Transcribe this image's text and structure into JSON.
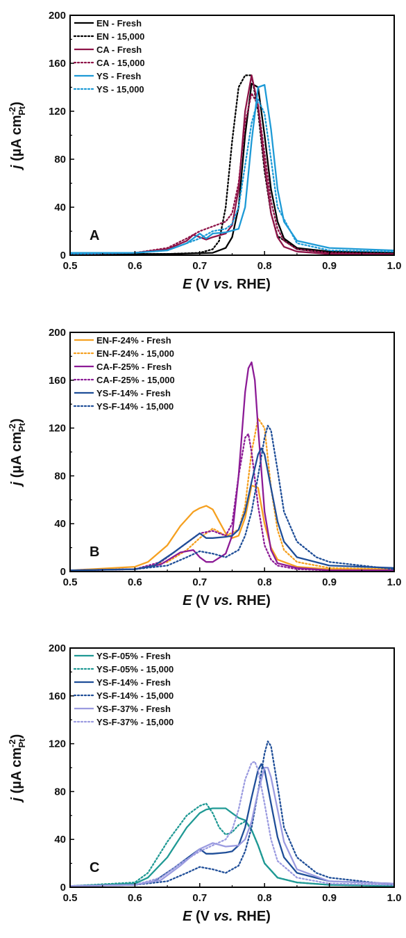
{
  "chart_data": [
    {
      "type": "line",
      "panel_label": "A",
      "xlabel": {
        "italic": "E",
        "rest": " (V ",
        "italic2": "vs.",
        "rest2": " RHE)"
      },
      "ylabel": {
        "italic": "j",
        "rest": " (µA cm",
        "sup": "-2",
        "sub": "Pt",
        "close": ")"
      },
      "xlim": [
        0.5,
        1.0
      ],
      "ylim": [
        0,
        200
      ],
      "xticks": [
        "0.5",
        "0.6",
        "0.7",
        "0.8",
        "0.9",
        "1.0"
      ],
      "yticks": [
        "0",
        "40",
        "80",
        "120",
        "160",
        "200"
      ],
      "legend_position": "top-left",
      "series": [
        {
          "name": "EN - Fresh",
          "color": "#000000",
          "dash": "solid",
          "x": [
            0.5,
            0.65,
            0.72,
            0.74,
            0.75,
            0.76,
            0.77,
            0.78,
            0.79,
            0.8,
            0.81,
            0.82,
            0.83,
            0.85,
            0.9,
            1.0
          ],
          "y": [
            1,
            1,
            2,
            6,
            15,
            40,
            100,
            143,
            140,
            100,
            55,
            28,
            14,
            6,
            3,
            2
          ]
        },
        {
          "name": "EN - 15,000",
          "color": "#000000",
          "dash": "dotted",
          "x": [
            0.5,
            0.65,
            0.7,
            0.72,
            0.73,
            0.74,
            0.75,
            0.76,
            0.77,
            0.78,
            0.79,
            0.8,
            0.81,
            0.82,
            0.85,
            0.9,
            1.0
          ],
          "y": [
            1,
            1,
            2,
            5,
            12,
            40,
            95,
            140,
            150,
            150,
            120,
            70,
            35,
            16,
            5,
            2,
            1
          ]
        },
        {
          "name": "CA - Fresh",
          "color": "#8e1448",
          "dash": "solid",
          "x": [
            0.5,
            0.6,
            0.65,
            0.68,
            0.69,
            0.7,
            0.71,
            0.72,
            0.74,
            0.75,
            0.76,
            0.77,
            0.78,
            0.79,
            0.8,
            0.81,
            0.82,
            0.83,
            0.85,
            0.9,
            1.0
          ],
          "y": [
            1,
            2,
            5,
            12,
            17,
            15,
            13,
            15,
            18,
            25,
            55,
            120,
            150,
            125,
            75,
            35,
            15,
            7,
            3,
            1,
            1
          ]
        },
        {
          "name": "CA - 15,000",
          "color": "#8e1448",
          "dash": "dotted",
          "x": [
            0.5,
            0.6,
            0.65,
            0.68,
            0.7,
            0.72,
            0.74,
            0.75,
            0.76,
            0.77,
            0.78,
            0.79,
            0.8,
            0.81,
            0.82,
            0.83,
            0.85,
            0.9,
            1.0
          ],
          "y": [
            1,
            2,
            6,
            14,
            20,
            24,
            28,
            35,
            60,
            110,
            135,
            125,
            85,
            45,
            22,
            12,
            5,
            2,
            1
          ]
        },
        {
          "name": "YS - Fresh",
          "color": "#1d9ad6",
          "dash": "solid",
          "x": [
            0.5,
            0.6,
            0.65,
            0.68,
            0.7,
            0.71,
            0.72,
            0.74,
            0.76,
            0.77,
            0.78,
            0.79,
            0.8,
            0.81,
            0.82,
            0.83,
            0.85,
            0.9,
            1.0
          ],
          "y": [
            2,
            2,
            4,
            10,
            18,
            14,
            18,
            19,
            22,
            40,
            95,
            140,
            142,
            105,
            55,
            28,
            12,
            6,
            4
          ]
        },
        {
          "name": "YS - 15,000",
          "color": "#1d9ad6",
          "dash": "dotted",
          "x": [
            0.5,
            0.6,
            0.65,
            0.68,
            0.7,
            0.72,
            0.74,
            0.75,
            0.76,
            0.77,
            0.78,
            0.79,
            0.8,
            0.81,
            0.82,
            0.85,
            0.9,
            1.0
          ],
          "y": [
            1,
            2,
            4,
            10,
            14,
            20,
            22,
            26,
            40,
            75,
            110,
            130,
            118,
            80,
            40,
            10,
            4,
            3
          ]
        }
      ]
    },
    {
      "type": "line",
      "panel_label": "B",
      "xlabel": {
        "italic": "E",
        "rest": " (V ",
        "italic2": "vs.",
        "rest2": " RHE)"
      },
      "ylabel": {
        "italic": "j",
        "rest": " (µA cm",
        "sup": "-2",
        "sub": "Pt",
        "close": ")"
      },
      "xlim": [
        0.5,
        1.0
      ],
      "ylim": [
        0,
        200
      ],
      "xticks": [
        "0.5",
        "0.6",
        "0.7",
        "0.8",
        "0.9",
        "1.0"
      ],
      "yticks": [
        "0",
        "40",
        "80",
        "120",
        "160",
        "200"
      ],
      "legend_position": "top-left",
      "series": [
        {
          "name": "EN-F-24% - Fresh",
          "color": "#f5a020",
          "dash": "solid",
          "x": [
            0.5,
            0.6,
            0.62,
            0.65,
            0.67,
            0.69,
            0.7,
            0.71,
            0.72,
            0.73,
            0.74,
            0.75,
            0.76,
            0.77,
            0.78,
            0.79,
            0.8,
            0.81,
            0.82,
            0.85,
            0.9,
            1.0
          ],
          "y": [
            1,
            4,
            8,
            22,
            38,
            50,
            53,
            55,
            52,
            42,
            32,
            28,
            30,
            45,
            72,
            70,
            40,
            20,
            10,
            4,
            2,
            2
          ]
        },
        {
          "name": "EN-F-24% - 15,000",
          "color": "#f5a020",
          "dash": "dotted",
          "x": [
            0.5,
            0.6,
            0.65,
            0.68,
            0.7,
            0.72,
            0.74,
            0.76,
            0.77,
            0.78,
            0.79,
            0.8,
            0.81,
            0.82,
            0.83,
            0.85,
            0.9,
            1.0
          ],
          "y": [
            1,
            2,
            8,
            18,
            28,
            36,
            30,
            35,
            55,
            100,
            128,
            120,
            70,
            35,
            18,
            8,
            3,
            2
          ]
        },
        {
          "name": "CA-F-25% - Fresh",
          "color": "#8c1b96",
          "dash": "solid",
          "x": [
            0.5,
            0.6,
            0.64,
            0.67,
            0.69,
            0.7,
            0.71,
            0.72,
            0.74,
            0.75,
            0.76,
            0.77,
            0.775,
            0.78,
            0.785,
            0.79,
            0.8,
            0.81,
            0.82,
            0.85,
            0.9,
            1.0
          ],
          "y": [
            1,
            2,
            6,
            16,
            18,
            12,
            8,
            8,
            15,
            30,
            80,
            150,
            170,
            175,
            160,
            120,
            50,
            18,
            7,
            3,
            1,
            1
          ]
        },
        {
          "name": "CA-F-25% - 15,000",
          "color": "#8c1b96",
          "dash": "dotted",
          "x": [
            0.5,
            0.6,
            0.64,
            0.67,
            0.69,
            0.7,
            0.72,
            0.74,
            0.75,
            0.76,
            0.77,
            0.775,
            0.78,
            0.79,
            0.8,
            0.81,
            0.82,
            0.85,
            0.9,
            1.0
          ],
          "y": [
            1,
            2,
            8,
            20,
            28,
            32,
            34,
            30,
            40,
            80,
            112,
            115,
            100,
            55,
            22,
            10,
            5,
            2,
            1,
            1
          ]
        },
        {
          "name": "YS-F-14% - Fresh",
          "color": "#1f4e98",
          "dash": "solid",
          "x": [
            0.5,
            0.6,
            0.63,
            0.66,
            0.68,
            0.69,
            0.7,
            0.71,
            0.72,
            0.74,
            0.75,
            0.76,
            0.77,
            0.78,
            0.79,
            0.795,
            0.8,
            0.81,
            0.82,
            0.83,
            0.85,
            0.9,
            1.0
          ],
          "y": [
            1,
            2,
            5,
            16,
            24,
            28,
            32,
            28,
            28,
            29,
            30,
            35,
            50,
            75,
            98,
            103,
            98,
            70,
            42,
            25,
            12,
            5,
            3
          ]
        },
        {
          "name": "YS-F-14% - 15,000",
          "color": "#1f4e98",
          "dash": "dotted",
          "x": [
            0.5,
            0.6,
            0.65,
            0.68,
            0.7,
            0.72,
            0.74,
            0.76,
            0.77,
            0.78,
            0.79,
            0.8,
            0.805,
            0.81,
            0.82,
            0.83,
            0.85,
            0.88,
            0.9,
            1.0
          ],
          "y": [
            1,
            2,
            5,
            12,
            17,
            15,
            12,
            18,
            30,
            50,
            80,
            112,
            122,
            118,
            85,
            50,
            25,
            12,
            8,
            2
          ]
        }
      ]
    },
    {
      "type": "line",
      "panel_label": "C",
      "xlabel": {
        "italic": "E",
        "rest": " (V ",
        "italic2": "vs.",
        "rest2": " RHE)"
      },
      "ylabel": {
        "italic": "j",
        "rest": " (µA cm",
        "sup": "-2",
        "sub": "Pt",
        "close": ")"
      },
      "xlim": [
        0.5,
        1.0
      ],
      "ylim": [
        0,
        200
      ],
      "xticks": [
        "0.5",
        "0.6",
        "0.7",
        "0.8",
        "0.9",
        "1.0"
      ],
      "yticks": [
        "0",
        "40",
        "80",
        "120",
        "160",
        "200"
      ],
      "legend_position": "top-left",
      "series": [
        {
          "name": "YS-F-05% - Fresh",
          "color": "#1f9994",
          "dash": "solid",
          "x": [
            0.5,
            0.6,
            0.62,
            0.65,
            0.68,
            0.7,
            0.71,
            0.72,
            0.74,
            0.75,
            0.76,
            0.77,
            0.78,
            0.79,
            0.8,
            0.82,
            0.85,
            0.9,
            1.0
          ],
          "y": [
            1,
            3,
            8,
            25,
            50,
            62,
            65,
            66,
            66,
            62,
            58,
            56,
            48,
            35,
            20,
            8,
            4,
            2,
            1
          ]
        },
        {
          "name": "YS-F-05% - 15,000",
          "color": "#1f9994",
          "dash": "dotted",
          "x": [
            0.5,
            0.6,
            0.62,
            0.65,
            0.68,
            0.7,
            0.71,
            0.72,
            0.73,
            0.74,
            0.75,
            0.76,
            0.77,
            0.78,
            0.79,
            0.8,
            0.82,
            0.85,
            0.9,
            1.0
          ],
          "y": [
            1,
            4,
            12,
            38,
            60,
            68,
            70,
            62,
            50,
            44,
            46,
            52,
            55,
            48,
            35,
            20,
            8,
            4,
            2,
            1
          ]
        },
        {
          "name": "YS-F-14% - Fresh",
          "color": "#1f4e98",
          "dash": "solid",
          "x": [
            0.5,
            0.6,
            0.63,
            0.66,
            0.68,
            0.69,
            0.7,
            0.71,
            0.72,
            0.74,
            0.75,
            0.76,
            0.77,
            0.78,
            0.79,
            0.795,
            0.8,
            0.81,
            0.82,
            0.83,
            0.85,
            0.9,
            1.0
          ],
          "y": [
            1,
            2,
            5,
            16,
            24,
            28,
            32,
            28,
            28,
            29,
            30,
            35,
            50,
            75,
            98,
            103,
            98,
            70,
            42,
            25,
            12,
            5,
            3
          ]
        },
        {
          "name": "YS-F-14% - 15,000",
          "color": "#1f4e98",
          "dash": "dotted",
          "x": [
            0.5,
            0.6,
            0.65,
            0.68,
            0.7,
            0.72,
            0.74,
            0.76,
            0.77,
            0.78,
            0.79,
            0.8,
            0.805,
            0.81,
            0.82,
            0.83,
            0.85,
            0.88,
            0.9,
            1.0
          ],
          "y": [
            1,
            2,
            5,
            12,
            17,
            15,
            12,
            18,
            30,
            50,
            80,
            112,
            122,
            118,
            85,
            50,
            25,
            12,
            8,
            2
          ]
        },
        {
          "name": "YS-F-37% - Fresh",
          "color": "#9b9be0",
          "dash": "solid",
          "x": [
            0.5,
            0.6,
            0.64,
            0.67,
            0.7,
            0.72,
            0.74,
            0.76,
            0.77,
            0.78,
            0.79,
            0.8,
            0.805,
            0.81,
            0.82,
            0.83,
            0.85,
            0.9,
            1.0
          ],
          "y": [
            1,
            2,
            6,
            18,
            32,
            37,
            34,
            35,
            40,
            55,
            80,
            100,
            100,
            92,
            65,
            38,
            15,
            5,
            3
          ]
        },
        {
          "name": "YS-F-37% - 15,000",
          "color": "#9b9be0",
          "dash": "dotted",
          "x": [
            0.5,
            0.6,
            0.64,
            0.67,
            0.7,
            0.72,
            0.74,
            0.75,
            0.76,
            0.77,
            0.78,
            0.785,
            0.79,
            0.8,
            0.81,
            0.82,
            0.85,
            0.9,
            1.0
          ],
          "y": [
            1,
            2,
            8,
            20,
            30,
            35,
            40,
            48,
            65,
            90,
            104,
            105,
            98,
            70,
            40,
            22,
            8,
            3,
            2
          ]
        }
      ]
    }
  ]
}
